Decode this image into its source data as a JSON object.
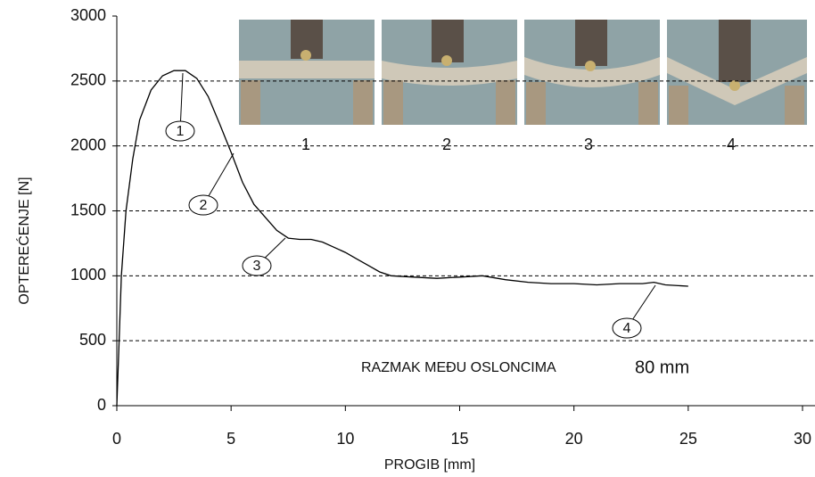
{
  "chart_data": {
    "type": "line",
    "xlabel": "PROGIB  [mm]",
    "ylabel": "OPTEREĆENJE  [N]",
    "x": [
      0,
      0.1,
      0.2,
      0.4,
      0.7,
      1,
      1.5,
      2,
      2.5,
      3,
      3.5,
      4,
      4.5,
      5,
      5.5,
      6,
      6.5,
      7,
      7.5,
      8,
      8.5,
      9,
      9.5,
      10,
      10.5,
      11,
      11.5,
      12,
      13,
      14,
      15,
      16,
      17,
      18,
      19,
      20,
      21,
      22,
      23,
      23.5,
      24,
      25
    ],
    "values": [
      0,
      500,
      1000,
      1500,
      1900,
      2200,
      2430,
      2540,
      2580,
      2580,
      2520,
      2380,
      2170,
      1950,
      1720,
      1550,
      1450,
      1350,
      1290,
      1280,
      1280,
      1260,
      1220,
      1180,
      1130,
      1080,
      1030,
      1000,
      990,
      980,
      990,
      1000,
      970,
      950,
      940,
      940,
      930,
      940,
      940,
      950,
      930,
      920
    ],
    "color": "#000000",
    "xlim": [
      0,
      30
    ],
    "xticks": [
      0,
      5,
      10,
      15,
      20,
      25,
      30
    ],
    "ylim": [
      0,
      3000
    ],
    "yticks": [
      0,
      500,
      1000,
      1500,
      2000,
      2500,
      3000
    ],
    "grid": true,
    "markers": [
      "1",
      "2",
      "3",
      "4"
    ],
    "photo_labels": [
      "1",
      "2",
      "3",
      "4"
    ],
    "annotations": [
      "RAZMAK MEĐU OSLONCIMA",
      "80 mm"
    ]
  }
}
